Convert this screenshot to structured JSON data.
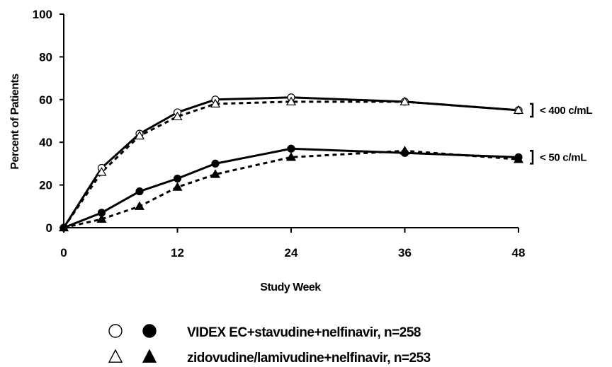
{
  "chart_data": {
    "type": "line",
    "title": "",
    "xlabel": "Study Week",
    "ylabel": "Percent of Patients",
    "xlim": [
      0,
      48
    ],
    "ylim": [
      0,
      100
    ],
    "x_ticks": [
      0,
      12,
      24,
      36,
      48
    ],
    "y_ticks": [
      0,
      20,
      40,
      60,
      80,
      100
    ],
    "grid": false,
    "legend_position": "bottom-center",
    "series": [
      {
        "group": "< 400 c/mL",
        "marker": "circle-open",
        "line": "solid",
        "x": [
          0,
          4,
          8,
          12,
          16,
          24,
          36,
          48
        ],
        "y": [
          0,
          28,
          44,
          54,
          60,
          61,
          59,
          55
        ]
      },
      {
        "group": "< 400 c/mL",
        "marker": "triangle-open",
        "line": "dashed",
        "x": [
          0,
          4,
          8,
          12,
          16,
          24,
          36,
          48
        ],
        "y": [
          0,
          26,
          43,
          52,
          58,
          59,
          59,
          55
        ]
      },
      {
        "group": "< 50 c/mL",
        "marker": "circle-filled",
        "line": "solid",
        "x": [
          0,
          4,
          8,
          12,
          16,
          24,
          36,
          48
        ],
        "y": [
          0,
          7,
          17,
          23,
          30,
          37,
          35,
          33
        ]
      },
      {
        "group": "< 50 c/mL",
        "marker": "triangle-filled",
        "line": "dashed",
        "x": [
          0,
          4,
          8,
          12,
          16,
          24,
          36,
          48
        ],
        "y": [
          0,
          4,
          10,
          19,
          25,
          33,
          36,
          32
        ]
      }
    ],
    "annotations": [
      {
        "text": "< 400 c/mL",
        "y_range": [
          52,
          58
        ]
      },
      {
        "text": "< 50 c/mL",
        "y_range": [
          30,
          36
        ]
      }
    ],
    "legend": [
      {
        "label": "VIDEX EC+stavudine+nelfinavir, n=258",
        "markers": [
          "circle-open",
          "circle-filled"
        ]
      },
      {
        "label": "zidovudine/lamivudine+nelfinavir, n=253",
        "markers": [
          "triangle-open",
          "triangle-filled"
        ]
      }
    ]
  }
}
